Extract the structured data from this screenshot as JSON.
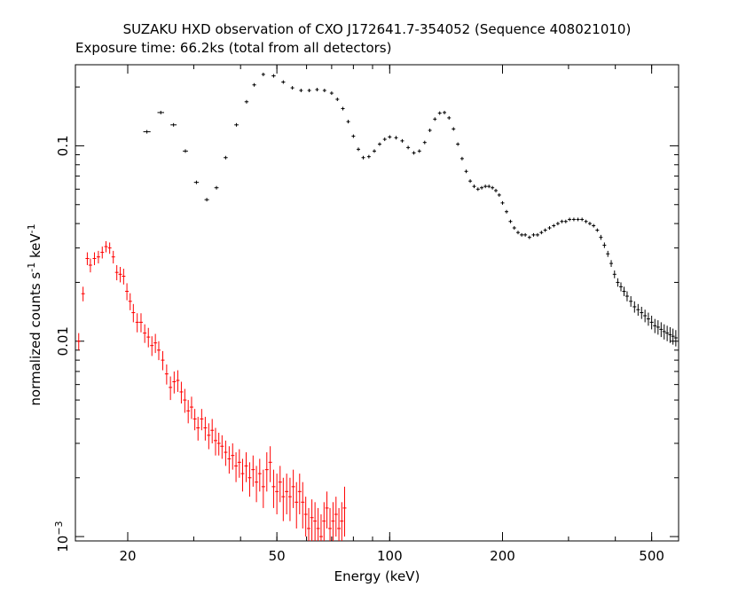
{
  "chart_data": {
    "type": "scatter",
    "title": "SUZAKU HXD observation of CXO J172641.7-354052 (Sequence 408021010)",
    "subtitle": "Exposure time: 66.2ks (total from all detectors)",
    "xlabel": "Energy (keV)",
    "ylabel_main": "normalized counts s",
    "ylabel_exp1": "-1",
    "ylabel_mid": " keV",
    "ylabel_exp2": "-1",
    "xscale": "log",
    "yscale": "log",
    "xlim": [
      14.5,
      590
    ],
    "ylim": [
      0.00095,
      0.26
    ],
    "x_ticks": [
      {
        "value": 20,
        "label": "20"
      },
      {
        "value": 50,
        "label": "50"
      },
      {
        "value": 100,
        "label": "100"
      },
      {
        "value": 200,
        "label": "200"
      },
      {
        "value": 500,
        "label": "500"
      }
    ],
    "y_ticks": [
      {
        "value": 0.1,
        "label": "0.1"
      },
      {
        "value": 0.01,
        "label": "0.01"
      }
    ],
    "y_tick_1e3": {
      "value": 0.001,
      "base": "10",
      "exp": "−3"
    },
    "series": [
      {
        "color": "#000000",
        "points": [
          [
            22.5,
            0.118,
            1.0,
            0.0
          ],
          [
            24.5,
            0.148,
            1.0,
            0.0
          ],
          [
            26.5,
            0.128,
            1.0,
            0.0
          ],
          [
            28.5,
            0.094,
            0.9,
            0.0
          ],
          [
            30.5,
            0.065,
            0.9,
            0.0
          ],
          [
            32.5,
            0.053,
            0.9,
            0.0
          ],
          [
            34.5,
            0.061,
            0.9,
            0.0
          ],
          [
            36.5,
            0.087,
            0.9,
            0.0
          ],
          [
            39.0,
            0.128,
            1.0,
            0.0
          ],
          [
            41.5,
            0.168,
            1.0,
            0.0
          ],
          [
            43.5,
            0.205,
            1.0,
            0.0
          ],
          [
            46.0,
            0.232,
            1.0,
            0.0
          ],
          [
            49.0,
            0.228,
            1.2,
            0.0
          ],
          [
            52.0,
            0.212,
            1.2,
            0.0
          ],
          [
            55.0,
            0.198,
            1.2,
            0.0
          ],
          [
            58.0,
            0.192,
            1.2,
            0.0
          ],
          [
            61.0,
            0.192,
            1.2,
            0.0
          ],
          [
            64.0,
            0.194,
            1.2,
            0.0
          ],
          [
            67.0,
            0.192,
            1.2,
            0.0
          ],
          [
            70.0,
            0.186,
            1.2,
            0.0
          ],
          [
            72.5,
            0.173,
            1.0,
            0.0
          ],
          [
            75.0,
            0.155,
            1.0,
            0.0
          ],
          [
            77.5,
            0.133,
            1.0,
            0.0
          ],
          [
            80.0,
            0.112,
            1.0,
            0.0
          ],
          [
            82.5,
            0.096,
            1.0,
            0.0
          ],
          [
            85.0,
            0.087,
            1.0,
            0.0
          ],
          [
            88.0,
            0.088,
            1.0,
            0.0
          ],
          [
            91.0,
            0.094,
            1.0,
            0.0
          ],
          [
            94.0,
            0.102,
            1.0,
            0.0
          ],
          [
            97.0,
            0.108,
            1.0,
            0.0
          ],
          [
            100.0,
            0.111,
            1.0,
            0.0
          ],
          [
            104.0,
            0.11,
            1.0,
            0.0
          ],
          [
            108.0,
            0.106,
            1.0,
            0.0
          ],
          [
            112.0,
            0.098,
            1.0,
            0.0
          ],
          [
            116.0,
            0.092,
            1.0,
            0.0
          ],
          [
            120.0,
            0.094,
            1.0,
            0.0
          ],
          [
            124.0,
            0.104,
            1.0,
            0.0
          ],
          [
            128.0,
            0.12,
            1.0,
            0.0
          ],
          [
            132.0,
            0.137,
            1.0,
            0.0
          ],
          [
            136.0,
            0.147,
            1.0,
            0.0
          ],
          [
            140.0,
            0.148,
            1.0,
            0.0
          ],
          [
            144.0,
            0.139,
            1.0,
            0.0
          ],
          [
            148.0,
            0.122,
            1.0,
            0.0
          ],
          [
            152.0,
            0.102,
            1.0,
            0.0
          ],
          [
            156.0,
            0.086,
            1.0,
            0.0
          ],
          [
            160.0,
            0.074,
            1.0,
            0.0
          ],
          [
            164.0,
            0.066,
            1.0,
            0.0
          ],
          [
            168.0,
            0.062,
            1.0,
            0.0
          ],
          [
            172.0,
            0.06,
            1.0,
            0.0
          ],
          [
            176.0,
            0.061,
            1.0,
            0.0
          ],
          [
            180.0,
            0.062,
            1.0,
            0.0
          ],
          [
            184.0,
            0.062,
            1.0,
            0.0
          ],
          [
            188.0,
            0.061,
            1.0,
            0.0
          ],
          [
            192.0,
            0.059,
            1.0,
            0.0
          ],
          [
            196.0,
            0.056,
            1.0,
            0.0
          ],
          [
            200.0,
            0.051,
            1.0,
            0.0
          ],
          [
            205.0,
            0.046,
            1.0,
            0.0
          ],
          [
            210.0,
            0.041,
            1.0,
            0.0
          ],
          [
            215.0,
            0.038,
            1.0,
            0.0
          ],
          [
            220.0,
            0.036,
            1.0,
            0.0
          ],
          [
            225.0,
            0.035,
            1.0,
            0.0
          ],
          [
            230.0,
            0.035,
            1.0,
            0.0
          ],
          [
            236.0,
            0.034,
            1.0,
            0.0
          ],
          [
            242.0,
            0.035,
            1.0,
            0.0
          ],
          [
            248.0,
            0.035,
            1.0,
            0.0
          ],
          [
            254.0,
            0.036,
            1.0,
            0.0
          ],
          [
            260.0,
            0.037,
            1.0,
            0.0
          ],
          [
            267.0,
            0.038,
            1.0,
            0.0
          ],
          [
            274.0,
            0.039,
            1.0,
            0.0
          ],
          [
            281.0,
            0.04,
            1.0,
            0.0
          ],
          [
            288.0,
            0.041,
            1.0,
            0.0
          ],
          [
            295.0,
            0.041,
            1.0,
            0.0
          ],
          [
            302.0,
            0.042,
            1.0,
            0.0
          ],
          [
            310.0,
            0.042,
            1.0,
            0.0
          ],
          [
            318.0,
            0.042,
            1.0,
            0.0
          ],
          [
            326.0,
            0.042,
            1.0,
            0.0
          ],
          [
            334.0,
            0.041,
            1.0,
            0.0
          ],
          [
            342.0,
            0.04,
            1.0,
            0.0
          ],
          [
            350.0,
            0.039,
            1.0,
            0.0
          ],
          [
            358.0,
            0.037,
            1.0,
            0.0
          ],
          [
            366.0,
            0.034,
            1.0,
            0.001
          ],
          [
            374.0,
            0.031,
            1.0,
            0.001
          ],
          [
            382.0,
            0.028,
            1.0,
            0.001
          ],
          [
            390.0,
            0.025,
            1.0,
            0.001
          ],
          [
            398.0,
            0.022,
            1.0,
            0.001
          ],
          [
            406.0,
            0.02,
            1.0,
            0.001
          ],
          [
            414.0,
            0.019,
            1.0,
            0.001
          ],
          [
            422.0,
            0.018,
            1.0,
            0.001
          ],
          [
            430.0,
            0.017,
            1.0,
            0.001
          ],
          [
            440.0,
            0.016,
            1.0,
            0.001
          ],
          [
            450.0,
            0.015,
            1.0,
            0.001
          ],
          [
            460.0,
            0.0145,
            1.0,
            0.001
          ],
          [
            470.0,
            0.014,
            1.0,
            0.001
          ],
          [
            480.0,
            0.0135,
            1.0,
            0.001
          ],
          [
            490.0,
            0.013,
            1.0,
            0.001
          ],
          [
            500.0,
            0.0125,
            1.0,
            0.001
          ],
          [
            510.0,
            0.012,
            1.0,
            0.001
          ],
          [
            520.0,
            0.0118,
            1.0,
            0.001
          ],
          [
            530.0,
            0.0115,
            1.0,
            0.001
          ],
          [
            540.0,
            0.0112,
            1.0,
            0.001
          ],
          [
            550.0,
            0.011,
            1.0,
            0.001
          ],
          [
            560.0,
            0.0108,
            1.0,
            0.001
          ],
          [
            570.0,
            0.0106,
            1.0,
            0.001
          ],
          [
            580.0,
            0.0104,
            1.0,
            0.001
          ]
        ]
      },
      {
        "color": "#ff0000",
        "points": [
          [
            14.8,
            0.01,
            0.3,
            0.001
          ],
          [
            15.2,
            0.0175,
            0.3,
            0.0015
          ],
          [
            15.6,
            0.0265,
            0.3,
            0.002
          ],
          [
            15.9,
            0.0245,
            0.3,
            0.002
          ],
          [
            16.3,
            0.0265,
            0.3,
            0.002
          ],
          [
            16.7,
            0.027,
            0.3,
            0.002
          ],
          [
            17.1,
            0.0285,
            0.3,
            0.002
          ],
          [
            17.5,
            0.0305,
            0.3,
            0.002
          ],
          [
            17.9,
            0.03,
            0.3,
            0.002
          ],
          [
            18.3,
            0.027,
            0.3,
            0.002
          ],
          [
            18.7,
            0.0225,
            0.3,
            0.002
          ],
          [
            19.1,
            0.022,
            0.3,
            0.002
          ],
          [
            19.5,
            0.0215,
            0.3,
            0.002
          ],
          [
            19.9,
            0.018,
            0.3,
            0.0018
          ],
          [
            20.3,
            0.016,
            0.3,
            0.0016
          ],
          [
            20.7,
            0.014,
            0.3,
            0.0015
          ],
          [
            21.2,
            0.0125,
            0.3,
            0.0014
          ],
          [
            21.7,
            0.0125,
            0.3,
            0.0014
          ],
          [
            22.2,
            0.011,
            0.3,
            0.0012
          ],
          [
            22.7,
            0.0105,
            0.3,
            0.0012
          ],
          [
            23.2,
            0.0095,
            0.3,
            0.0011
          ],
          [
            23.7,
            0.0098,
            0.3,
            0.0011
          ],
          [
            24.2,
            0.009,
            0.3,
            0.001
          ],
          [
            24.8,
            0.008,
            0.3,
            0.0009
          ],
          [
            25.4,
            0.0068,
            0.3,
            0.0008
          ],
          [
            26.0,
            0.0058,
            0.3,
            0.0008
          ],
          [
            26.6,
            0.0062,
            0.3,
            0.0008
          ],
          [
            27.2,
            0.0063,
            0.3,
            0.0008
          ],
          [
            27.8,
            0.0055,
            0.3,
            0.0007
          ],
          [
            28.4,
            0.005,
            0.3,
            0.0007
          ],
          [
            29.0,
            0.0044,
            0.3,
            0.0006
          ],
          [
            29.6,
            0.0046,
            0.3,
            0.0006
          ],
          [
            30.2,
            0.004,
            0.3,
            0.0005
          ],
          [
            30.8,
            0.0036,
            0.3,
            0.0005
          ],
          [
            31.5,
            0.004,
            0.3,
            0.0005
          ],
          [
            32.2,
            0.0036,
            0.3,
            0.0005
          ],
          [
            32.9,
            0.0033,
            0.3,
            0.0005
          ],
          [
            33.6,
            0.0035,
            0.3,
            0.0005
          ],
          [
            34.3,
            0.0031,
            0.3,
            0.0005
          ],
          [
            35.0,
            0.003,
            0.3,
            0.0004
          ],
          [
            35.7,
            0.0029,
            0.3,
            0.0004
          ],
          [
            36.5,
            0.0027,
            0.3,
            0.0004
          ],
          [
            37.3,
            0.0025,
            0.3,
            0.0004
          ],
          [
            38.1,
            0.0026,
            0.3,
            0.0004
          ],
          [
            38.9,
            0.0023,
            0.3,
            0.0004
          ],
          [
            39.7,
            0.0024,
            0.3,
            0.0004
          ],
          [
            40.5,
            0.0021,
            0.3,
            0.0004
          ],
          [
            41.4,
            0.0023,
            0.3,
            0.0004
          ],
          [
            42.3,
            0.002,
            0.3,
            0.0004
          ],
          [
            43.2,
            0.0022,
            0.3,
            0.0004
          ],
          [
            44.1,
            0.0019,
            0.3,
            0.0004
          ],
          [
            45.0,
            0.0021,
            0.3,
            0.0004
          ],
          [
            46.0,
            0.0018,
            0.3,
            0.0004
          ],
          [
            47.0,
            0.0022,
            0.3,
            0.0005
          ],
          [
            48.0,
            0.0024,
            0.3,
            0.0005
          ],
          [
            49.0,
            0.0018,
            0.3,
            0.0004
          ],
          [
            50.0,
            0.0017,
            0.3,
            0.0004
          ],
          [
            51.0,
            0.0019,
            0.3,
            0.0004
          ],
          [
            52.0,
            0.0016,
            0.3,
            0.0004
          ],
          [
            53.1,
            0.0017,
            0.3,
            0.0004
          ],
          [
            54.2,
            0.0016,
            0.3,
            0.0004
          ],
          [
            55.3,
            0.0018,
            0.3,
            0.0004
          ],
          [
            56.4,
            0.0015,
            0.3,
            0.0004
          ],
          [
            57.5,
            0.0017,
            0.3,
            0.0004
          ],
          [
            58.6,
            0.0015,
            0.3,
            0.0004
          ],
          [
            59.7,
            0.0013,
            0.3,
            0.0003
          ],
          [
            60.8,
            0.0011,
            0.3,
            0.0003
          ],
          [
            62.0,
            0.00125,
            0.3,
            0.0003
          ],
          [
            63.2,
            0.0012,
            0.3,
            0.0003
          ],
          [
            64.4,
            0.0011,
            0.3,
            0.0003
          ],
          [
            65.6,
            0.001,
            0.3,
            0.0003
          ],
          [
            66.8,
            0.0012,
            0.3,
            0.0003
          ],
          [
            68.0,
            0.0014,
            0.3,
            0.0003
          ],
          [
            69.3,
            0.0011,
            0.3,
            0.0003
          ],
          [
            70.6,
            0.0012,
            0.3,
            0.0003
          ],
          [
            71.9,
            0.0013,
            0.3,
            0.0003
          ],
          [
            73.2,
            0.0011,
            0.3,
            0.0003
          ],
          [
            74.5,
            0.0012,
            0.3,
            0.0003
          ],
          [
            75.8,
            0.0014,
            0.3,
            0.0004
          ]
        ]
      }
    ],
    "grid": false,
    "legend": "none"
  }
}
